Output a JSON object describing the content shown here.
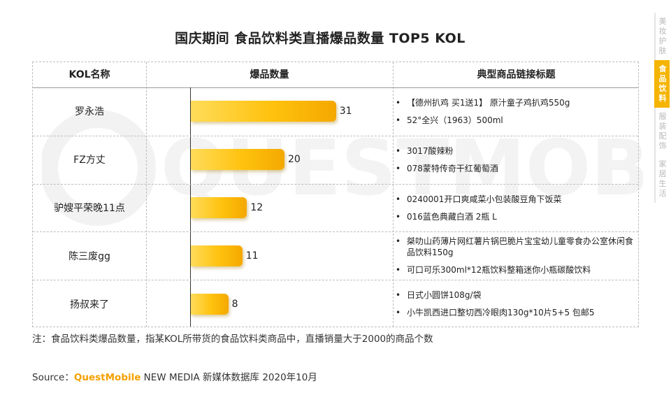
{
  "title": "国庆期间 食品饮料类直播爆品数量 TOP5 KOL",
  "headers": {
    "kol": "KOL名称",
    "count": "爆品数量",
    "links": "典型商品链接标题"
  },
  "chart_data": {
    "type": "bar",
    "orientation": "horizontal",
    "title": "国庆期间 食品饮料类直播爆品数量 TOP5 KOL",
    "categories": [
      "罗永浩",
      "FZ方丈",
      "驴嫂平荣晚11点",
      "陈三废gg",
      "扬叔来了"
    ],
    "values": [
      31,
      20,
      12,
      11,
      8
    ],
    "xlabel": "爆品数量",
    "ylabel": "KOL名称",
    "xlim": [
      0,
      34
    ],
    "grid": false
  },
  "rows": [
    {
      "name": "罗永浩",
      "value": "31",
      "links": [
        "【德州扒鸡 买1送1】 原汁童子鸡扒鸡550g",
        "52°全兴（1963）500ml"
      ]
    },
    {
      "name": "FZ方丈",
      "value": "20",
      "links": [
        "3017酸辣粉",
        "078蒙特传奇干红葡萄酒"
      ]
    },
    {
      "name": "驴嫂平荣晚11点",
      "value": "12",
      "links": [
        "0240001开口爽咸菜小包装酸豆角下饭菜",
        "016蓝色典藏白酒 2瓶 L"
      ]
    },
    {
      "name": "陈三废gg",
      "value": "11",
      "links": [
        "桀叻山药薄片网红薯片锅巴脆片宝宝幼儿童零食办公室休闲食品饮料150g",
        "可口可乐300ml*12瓶饮料整箱迷你小瓶碳酸饮料"
      ]
    },
    {
      "name": "扬叔来了",
      "value": "8",
      "links": [
        "日式小圆饼108g/袋",
        "小牛凯西进口整切西冷眼肉130g*10片5+5 包邮5"
      ]
    }
  ],
  "note": "注：食品饮料类爆品数量，指某KOL所带货的食品饮料类商品中，直播销量大于2000的商品个数",
  "source": {
    "prefix": "Source：",
    "brand": "QuestMobile",
    "suffix": " NEW MEDIA 新媒体数据库 2020年10月"
  },
  "watermark": "QUESTMOBILE",
  "sidebar": [
    {
      "label": "美妆护肤",
      "active": false
    },
    {
      "label": "食品饮料",
      "active": true
    },
    {
      "label": "服装配饰",
      "active": false
    },
    {
      "label": "家居生活",
      "active": false
    }
  ],
  "colors": {
    "bar_start": "#ffdc5a",
    "bar_end": "#f4a800",
    "accent": "#f5b400",
    "brand": "#f5a000"
  }
}
